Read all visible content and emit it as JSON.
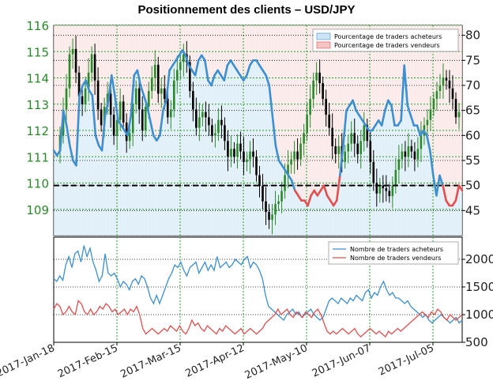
{
  "title": "Positionnement des clients – USD/JPY",
  "colors": {
    "buy": "#3d8fcf",
    "sell": "#e05050",
    "buy_fill": "#d7e9f8",
    "sell_fill": "#fbe3e3",
    "candle_up": "#2a8a2a",
    "candle_down": "#000000",
    "grid": "#2aa02a"
  },
  "chart_data": [
    {
      "type": "line",
      "panel": "top",
      "x_labels": [
        "2017-Jan-18",
        "2017-Feb-15",
        "2017-Mar-15",
        "2017-Apr-12",
        "2017-May-10",
        "2017-Jun-07",
        "2017-Jul-05"
      ],
      "price_axis": {
        "ylim": [
          108,
          116
        ],
        "ticks": [
          109,
          110,
          111,
          112,
          113,
          114,
          115,
          116
        ]
      },
      "percent_axis": {
        "ylim": [
          40,
          82
        ],
        "ticks": [
          45,
          50,
          55,
          60,
          65,
          70,
          75,
          80
        ]
      },
      "reference_level": 50,
      "legend": [
        "Pourcentage de traders acheteurs",
        "Pourcentage de traders vendeurs"
      ],
      "percent_long": [
        57,
        56,
        57,
        65,
        62,
        58,
        55,
        54,
        68,
        70,
        71,
        69,
        68,
        60,
        58,
        57,
        64,
        67,
        72,
        68,
        63,
        62,
        61,
        60,
        64,
        72,
        73,
        70,
        68,
        66,
        63,
        60,
        59,
        60,
        65,
        67,
        73,
        74,
        75,
        76,
        77,
        76,
        74,
        73,
        72,
        75,
        76,
        75,
        71,
        70,
        72,
        73,
        72,
        71,
        74,
        75,
        74,
        73,
        72,
        71,
        72,
        74,
        75,
        75,
        74,
        73,
        72,
        70,
        64,
        58,
        55,
        54,
        53,
        52,
        51,
        49,
        48,
        47,
        47,
        46,
        48,
        49,
        48,
        49,
        50,
        48,
        47,
        46,
        47,
        52,
        58,
        65,
        66,
        67,
        65,
        64,
        63,
        62,
        61,
        61,
        62,
        63,
        62,
        65,
        67,
        66,
        62,
        62,
        63,
        74,
        66,
        64,
        62,
        62,
        60,
        61,
        60,
        57,
        52,
        48,
        52,
        50,
        47,
        46,
        46,
        47,
        50,
        49
      ],
      "percent_short": [
        43,
        44,
        43,
        35,
        38,
        42,
        45,
        46,
        32,
        30,
        29,
        31,
        32,
        40,
        42,
        43,
        36,
        33,
        28,
        32,
        37,
        38,
        39,
        40,
        36,
        28,
        27,
        30,
        32,
        34,
        37,
        40,
        41,
        40,
        35,
        33,
        27,
        26,
        25,
        24,
        23,
        24,
        26,
        27,
        28,
        25,
        24,
        25,
        29,
        30,
        28,
        27,
        28,
        29,
        26,
        25,
        26,
        27,
        28,
        29,
        28,
        26,
        25,
        25,
        26,
        27,
        28,
        30,
        36,
        42,
        45,
        46,
        47,
        48,
        49,
        51,
        52,
        53,
        53,
        54,
        52,
        51,
        52,
        51,
        50,
        52,
        53,
        54,
        53,
        48,
        42,
        35,
        34,
        33,
        35,
        36,
        37,
        38,
        39,
        39,
        38,
        37,
        38,
        35,
        33,
        34,
        38,
        38,
        37,
        26,
        34,
        36,
        38,
        38,
        40,
        39,
        40,
        43,
        48,
        52,
        48,
        50,
        53,
        54,
        54,
        53,
        50,
        51
      ],
      "price": [
        111.2,
        111.8,
        112.8,
        113.6,
        114.9,
        115.1,
        114.2,
        113.3,
        113.0,
        113.6,
        114.2,
        114.9,
        113.9,
        112.8,
        112.2,
        112.9,
        113.4,
        112.6,
        111.8,
        112.4,
        113.1,
        112.3,
        111.6,
        111.9,
        113.0,
        113.6,
        112.8,
        112.0,
        112.9,
        113.5,
        114.0,
        114.5,
        113.4,
        113.6,
        113.2,
        112.5,
        112.8,
        113.9,
        114.3,
        114.6,
        114.9,
        114.6,
        113.5,
        112.8,
        112.1,
        112.5,
        112.7,
        112.5,
        112.2,
        111.8,
        111.9,
        112.4,
        112.2,
        111.6,
        111.0,
        111.3,
        111.0,
        111.5,
        111.2,
        110.8,
        110.9,
        111.2,
        111.0,
        110.3,
        109.9,
        109.3,
        108.9,
        108.6,
        108.8,
        109.2,
        109.3,
        109.7,
        110.3,
        110.7,
        110.9,
        111.2,
        110.9,
        111.5,
        111.9,
        112.6,
        113.2,
        113.9,
        114.2,
        113.8,
        113.2,
        112.6,
        112.1,
        111.4,
        111.1,
        111.4,
        110.8,
        111.2,
        111.5,
        111.9,
        111.5,
        111.1,
        111.6,
        112.2,
        111.6,
        110.8,
        110.0,
        109.6,
        109.9,
        109.8,
        109.7,
        109.5,
        109.9,
        110.5,
        110.9,
        111.2,
        111.0,
        111.4,
        111.2,
        110.9,
        111.3,
        111.8,
        112.2,
        112.4,
        112.8,
        113.2,
        113.5,
        113.7,
        114.0,
        113.9,
        113.6,
        113.2,
        112.5,
        112.7
      ]
    },
    {
      "type": "line",
      "panel": "bottom",
      "ylim": [
        500,
        2400
      ],
      "ticks": [
        500,
        1000,
        1500,
        2000
      ],
      "legend": [
        "Nombre de traders acheteurs",
        "Nombre de traders vendeurs"
      ],
      "long_traders": [
        1650,
        1600,
        1700,
        1620,
        1900,
        2050,
        1850,
        2100,
        2150,
        1950,
        2250,
        2050,
        2200,
        1950,
        1800,
        1600,
        1700,
        2100,
        1750,
        1700,
        1750,
        1650,
        1500,
        1600,
        1550,
        1450,
        1600,
        1650,
        1550,
        1700,
        1650,
        1500,
        1300,
        1200,
        1350,
        1200,
        1350,
        1500,
        1650,
        1750,
        1900,
        1850,
        1950,
        1800,
        1700,
        1850,
        1900,
        1950,
        1750,
        1850,
        1950,
        1800,
        1900,
        1800,
        2050,
        1850,
        1900,
        1950,
        1850,
        1900,
        2000,
        1950,
        1900,
        2000,
        2050,
        1850,
        1950,
        1900,
        1800,
        1650,
        1350,
        1150,
        1100,
        1050,
        1000,
        950,
        900,
        1000,
        1050,
        1100,
        1000,
        1050,
        950,
        1000,
        1050,
        1100,
        1000,
        950,
        900,
        950,
        1100,
        1250,
        1300,
        1250,
        1200,
        1300,
        1250,
        1200,
        1300,
        1250,
        1350,
        1300,
        1250,
        1400,
        1450,
        1300,
        1400,
        1350,
        1500,
        1600,
        1450,
        1350,
        1400,
        1300,
        1300,
        1250,
        1200,
        1250,
        1150,
        1100,
        1050,
        1000,
        950,
        1000,
        900,
        850,
        900,
        950,
        1000,
        950,
        900,
        850,
        900,
        950,
        850,
        900
      ],
      "short_traders": [
        1100,
        1200,
        1150,
        1000,
        1050,
        1150,
        1050,
        1000,
        1250,
        1200,
        1050,
        1000,
        1100,
        1000,
        1050,
        1150,
        1100,
        1200,
        1150,
        1050,
        1100,
        1000,
        1050,
        1100,
        1000,
        1100,
        1050,
        1150,
        1000,
        750,
        650,
        700,
        750,
        700,
        650,
        700,
        750,
        700,
        800,
        750,
        700,
        800,
        700,
        650,
        750,
        900,
        800,
        850,
        750,
        700,
        800,
        750,
        700,
        650,
        750,
        700,
        800,
        750,
        700,
        650,
        700,
        750,
        650,
        700,
        750,
        700,
        650,
        700,
        750,
        850,
        900,
        950,
        1000,
        1100,
        1000,
        1050,
        1100,
        1000,
        950,
        1050,
        1000,
        950,
        1050,
        1000,
        950,
        1050,
        1100,
        1000,
        850,
        700,
        650,
        700,
        650,
        700,
        750,
        700,
        650,
        700,
        750,
        650,
        600,
        650,
        700,
        750,
        700,
        650,
        700,
        650,
        600,
        700,
        650,
        700,
        750,
        700,
        750,
        800,
        850,
        900,
        950,
        1000,
        1050,
        1000,
        950,
        1050,
        1000,
        1100,
        1050,
        950,
        900,
        1000,
        950,
        900,
        950,
        1000
      ]
    }
  ]
}
